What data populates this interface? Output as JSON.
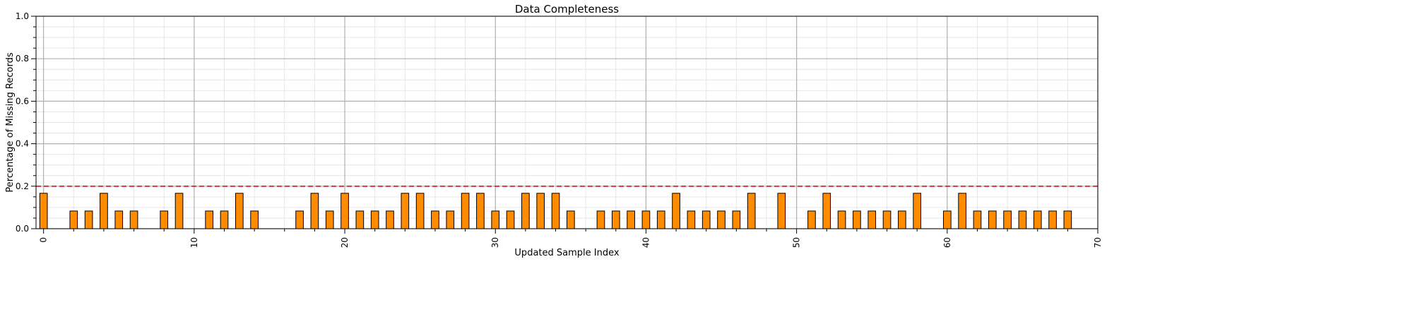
{
  "chart_data": {
    "type": "bar",
    "title": "Data Completeness",
    "xlabel": "Updated Sample Index",
    "ylabel": "Percentage of Missing Records",
    "xlim": [
      -0.5,
      70
    ],
    "ylim": [
      0,
      1.0
    ],
    "x_ticks": [
      0,
      10,
      20,
      30,
      40,
      50,
      60,
      70
    ],
    "x_tick_labels": [
      "0",
      "10",
      "20",
      "30",
      "40",
      "50",
      "60",
      "70"
    ],
    "y_ticks": [
      0.0,
      0.2,
      0.4,
      0.6,
      0.8,
      1.0
    ],
    "y_tick_labels": [
      "0.0",
      "0.2",
      "0.4",
      "0.6",
      "0.8",
      "1.0"
    ],
    "grid": true,
    "x": [
      0,
      1,
      2,
      3,
      4,
      5,
      6,
      7,
      8,
      9,
      10,
      11,
      12,
      13,
      14,
      15,
      16,
      17,
      18,
      19,
      20,
      21,
      22,
      23,
      24,
      25,
      26,
      27,
      28,
      29,
      30,
      31,
      32,
      33,
      34,
      35,
      36,
      37,
      38,
      39,
      40,
      41,
      42,
      43,
      44,
      45,
      46,
      47,
      48,
      49,
      50,
      51,
      52,
      53,
      54,
      55,
      56,
      57,
      58,
      59,
      60,
      61,
      62,
      63,
      64,
      65,
      66,
      67,
      68
    ],
    "values": [
      0.1667,
      0,
      0.0833,
      0.0833,
      0.1667,
      0.0833,
      0.0833,
      0,
      0.0833,
      0.1667,
      0,
      0.0833,
      0.0833,
      0.1667,
      0.0833,
      0,
      0,
      0.0833,
      0.1667,
      0.0833,
      0.1667,
      0.0833,
      0.0833,
      0.0833,
      0.1667,
      0.1667,
      0.0833,
      0.0833,
      0.1667,
      0.1667,
      0.0833,
      0.0833,
      0.1667,
      0.1667,
      0.1667,
      0.0833,
      0,
      0.0833,
      0.0833,
      0.0833,
      0.0833,
      0.0833,
      0.1667,
      0.0833,
      0.0833,
      0.0833,
      0.0833,
      0.1667,
      0,
      0.1667,
      0,
      0.0833,
      0.1667,
      0.0833,
      0.0833,
      0.0833,
      0.0833,
      0.0833,
      0.1667,
      0,
      0.0833,
      0.1667,
      0.0833,
      0.0833,
      0.0833,
      0.0833,
      0.0833,
      0.0833,
      0.0833
    ],
    "bar_color": "#ff8c00",
    "bar_edge_color": "#000000",
    "threshold": {
      "value": 0.2,
      "color": "#ff0000",
      "style": "dashed"
    }
  }
}
